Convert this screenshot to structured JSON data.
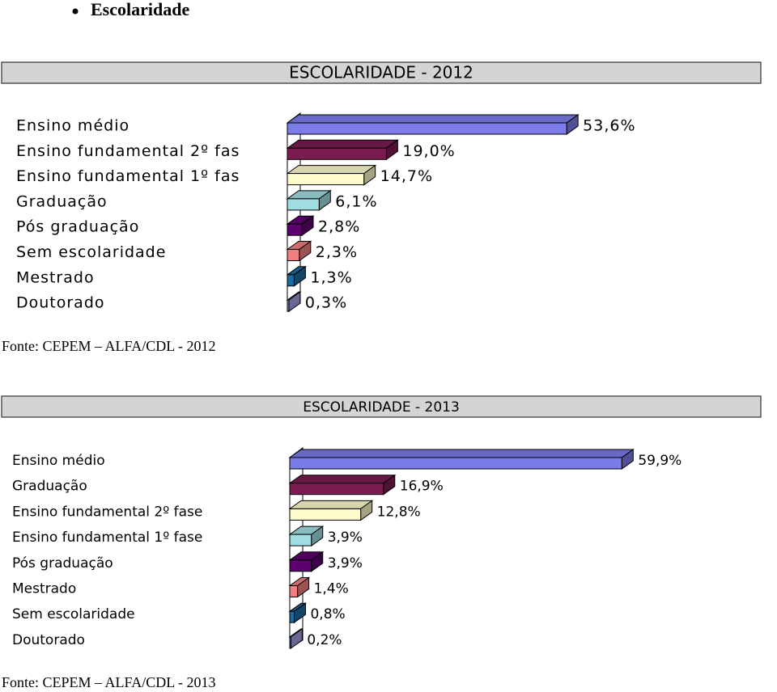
{
  "heading": "Escolaridade",
  "chart_data": [
    {
      "type": "bar",
      "title": "ESCOLARIDADE - 2012",
      "categories": [
        "Ensino médio",
        "Ensino fundamental 2º fas",
        "Ensino fundamental 1º fas",
        "Graduação",
        "Pós graduação",
        "Sem escolaridade",
        "Mestrado",
        "Doutorado"
      ],
      "values": [
        53.6,
        19.0,
        14.7,
        6.1,
        2.8,
        2.3,
        1.3,
        0.3
      ],
      "value_labels": [
        "53,6%",
        "19,0%",
        "14,7%",
        "6,1%",
        "2,8%",
        "2,3%",
        "1,3%",
        "0,3%"
      ],
      "colors": [
        "#7b7bea",
        "#7a1c50",
        "#fdfccc",
        "#a0dde0",
        "#5f0070",
        "#f08080",
        "#1d6aa0",
        "#a0a0e0"
      ],
      "source": "Fonte: CEPEM – ALFA/CDL - 2012"
    },
    {
      "type": "bar",
      "title": "ESCOLARIDADE - 2013",
      "categories": [
        "Ensino médio",
        "Graduação",
        "Ensino fundamental 2º fase",
        "Ensino fundamental 1º fase",
        "Pós graduação",
        "Mestrado",
        "Sem escolaridade",
        "Doutorado"
      ],
      "values": [
        59.9,
        16.9,
        12.8,
        3.9,
        3.9,
        1.4,
        0.8,
        0.2
      ],
      "value_labels": [
        "59,9%",
        "16,9%",
        "12,8%",
        "3,9%",
        "3,9%",
        "1,4%",
        "0,8%",
        "0,2%"
      ],
      "colors": [
        "#7b7bea",
        "#7a1c50",
        "#fdfccc",
        "#a0dde0",
        "#5f0070",
        "#f08080",
        "#1d6aa0",
        "#a0a0e0"
      ],
      "source": "Fonte: CEPEM – ALFA/CDL - 2013"
    }
  ]
}
